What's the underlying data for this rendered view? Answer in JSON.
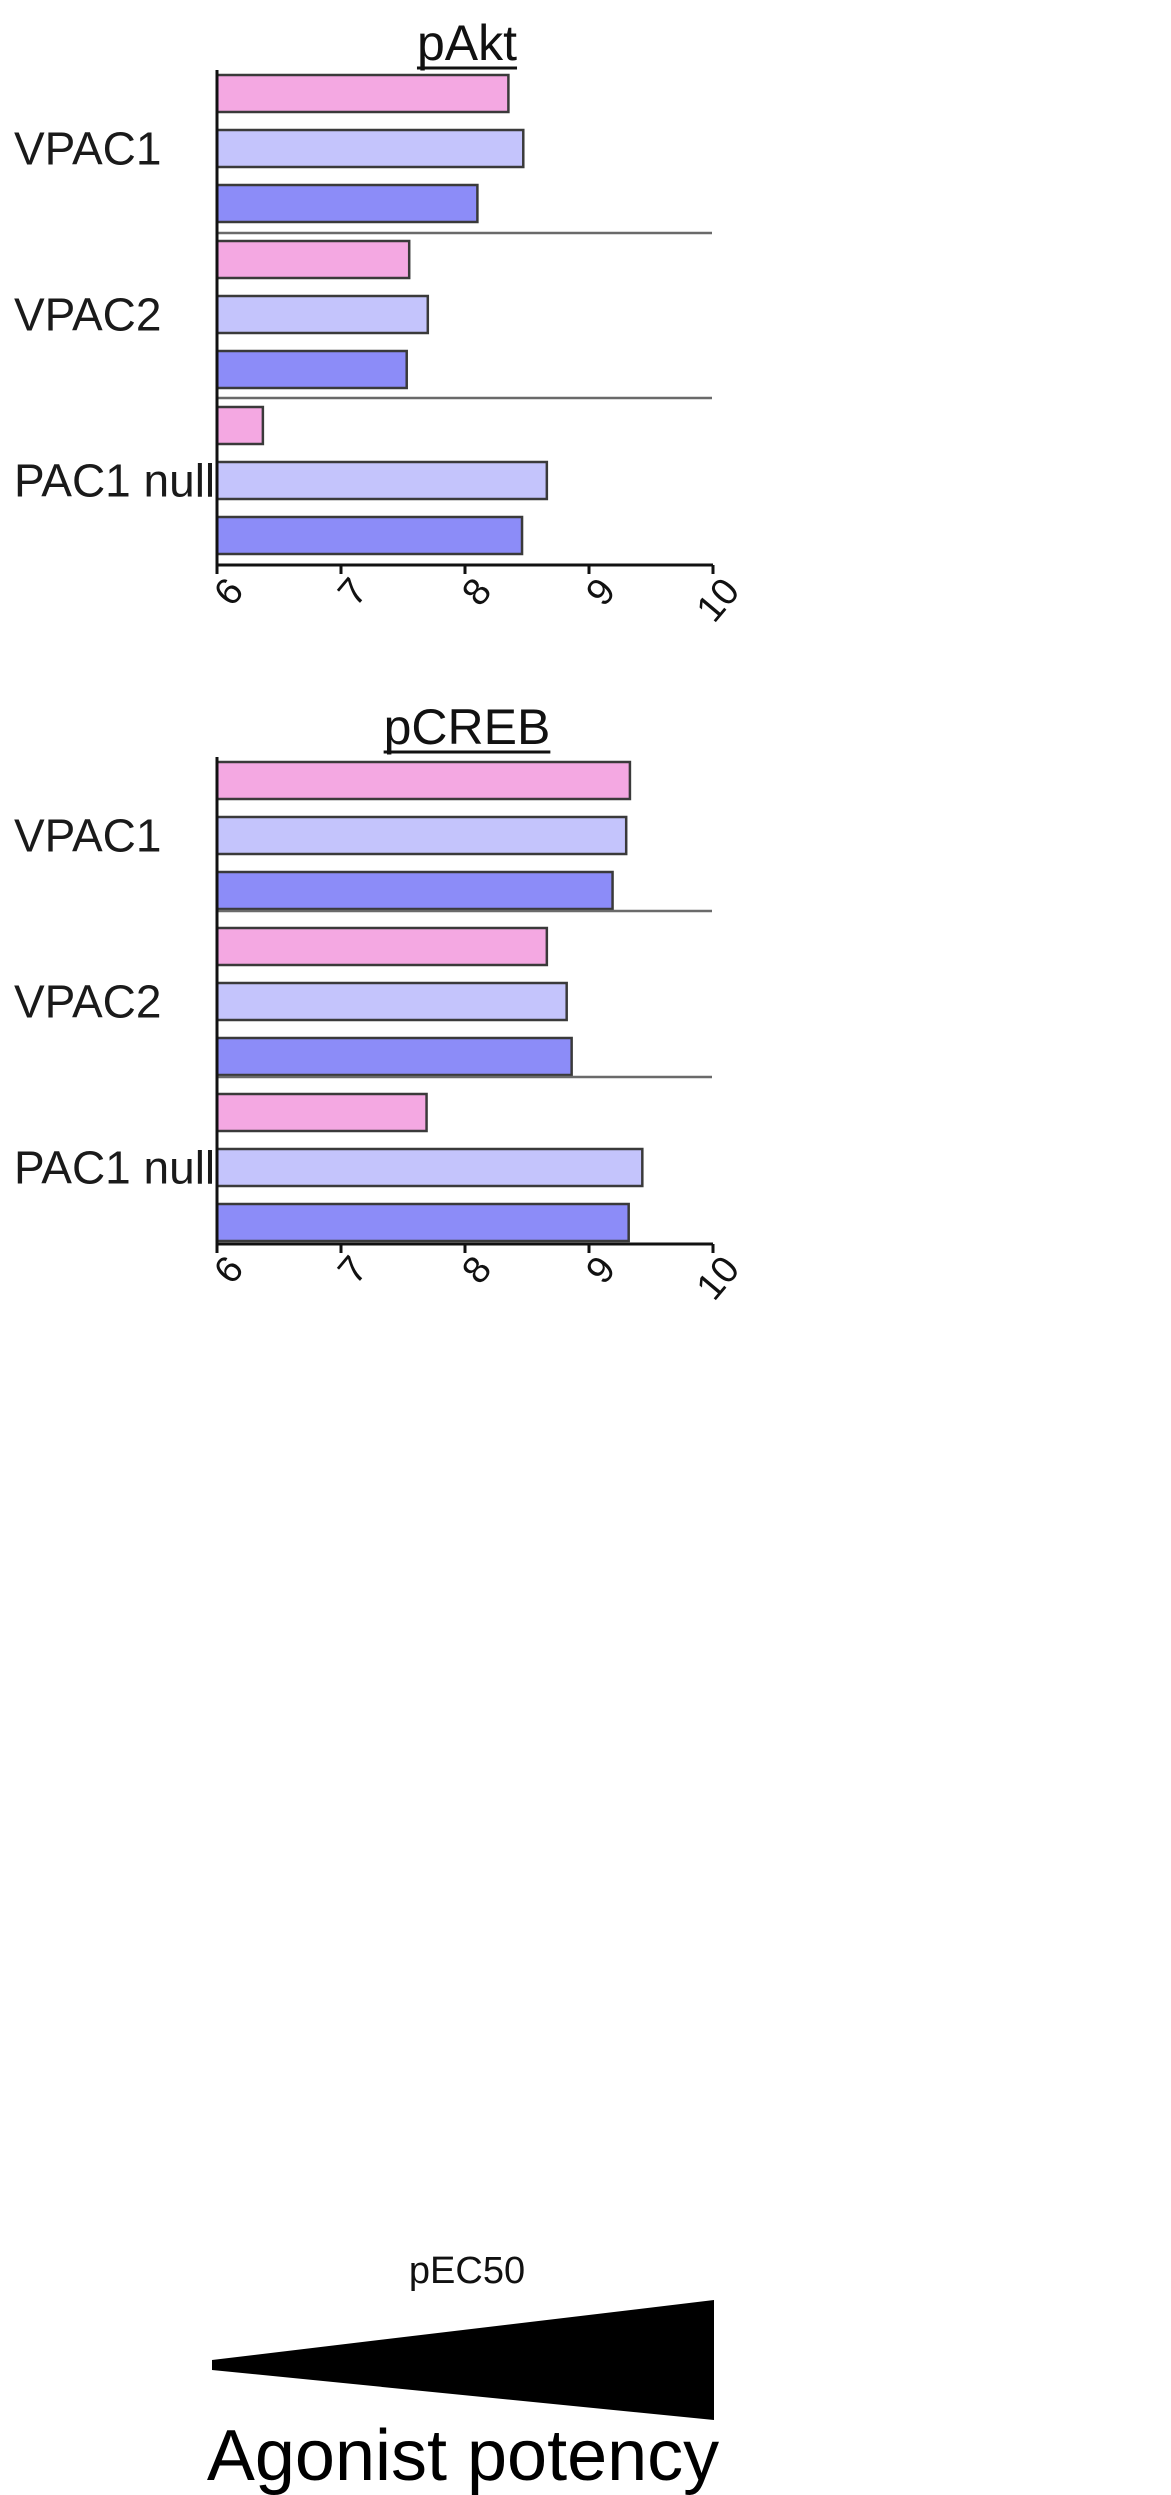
{
  "chart_data": [
    {
      "type": "bar",
      "orientation": "horizontal",
      "title": "pAkt",
      "categories": [
        "VPAC1",
        "VPAC2",
        "PAC1 null"
      ],
      "series": [
        {
          "color": "#f4a8e2",
          "values": [
            8.35,
            7.55,
            6.37
          ]
        },
        {
          "color": "#c4c4fc",
          "values": [
            8.47,
            7.7,
            8.66
          ]
        },
        {
          "color": "#8c8cf8",
          "values": [
            8.1,
            7.53,
            8.46
          ]
        }
      ],
      "xlim": [
        6,
        10
      ],
      "xticks": [
        "6",
        "7",
        "8",
        "9",
        "10"
      ],
      "grid": false
    },
    {
      "type": "bar",
      "orientation": "horizontal",
      "title": "pCREB",
      "categories": [
        "VPAC1",
        "VPAC2",
        "PAC1 null"
      ],
      "series": [
        {
          "color": "#f4a8e2",
          "values": [
            9.33,
            8.66,
            7.69
          ]
        },
        {
          "color": "#c4c4fc",
          "values": [
            9.3,
            8.82,
            9.43
          ]
        },
        {
          "color": "#8c8cf8",
          "values": [
            9.19,
            8.86,
            9.32
          ]
        }
      ],
      "xlim": [
        6,
        10
      ],
      "xticks": [
        "6",
        "7",
        "8",
        "9",
        "10"
      ],
      "xlabel": "pEC50",
      "grid": false
    }
  ],
  "footer": {
    "label": "Agonist potency",
    "wedge_color": "#000000"
  }
}
